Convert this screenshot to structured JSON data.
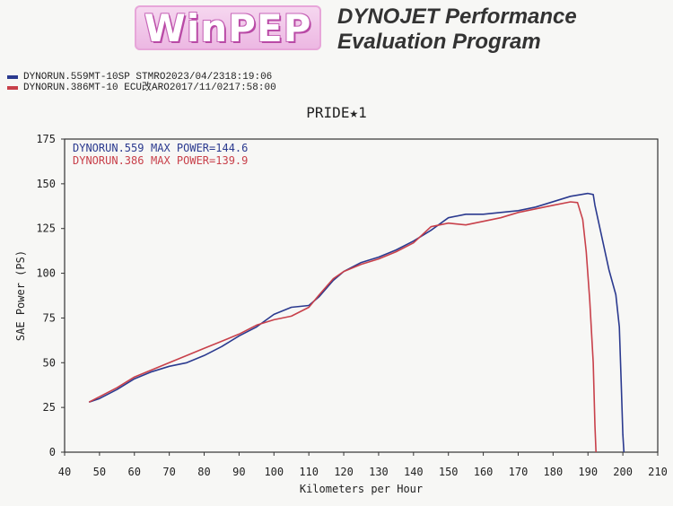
{
  "header": {
    "logo_text": "WinPEP",
    "brand_line1": "DYNOJET Performance",
    "brand_line2": "Evaluation Program"
  },
  "runs": [
    {
      "name": "DYNORUN.559",
      "model": "MT-10SP STM",
      "code": "RO",
      "date": "2023/04/23",
      "time": "18:19:06",
      "color": "#2b3a8f"
    },
    {
      "name": "DYNORUN.386",
      "model": "MT-10 ECU改",
      "code": "ARO",
      "date": "2017/11/02",
      "time": "17:58:00",
      "color": "#c8404a"
    }
  ],
  "chart_data": {
    "type": "line",
    "title": "PRIDE★1",
    "xlabel": "Kilometers per Hour",
    "ylabel": "SAE Power (PS)",
    "xlim": [
      40,
      210
    ],
    "ylim": [
      0,
      175
    ],
    "xticks": [
      40,
      50,
      60,
      70,
      80,
      90,
      100,
      110,
      120,
      130,
      140,
      150,
      160,
      170,
      180,
      190,
      200,
      210
    ],
    "yticks": [
      0,
      25,
      50,
      75,
      100,
      125,
      150,
      175
    ],
    "legend_position": "top-left",
    "series": [
      {
        "name": "DYNORUN.559",
        "label": "MAX POWER=144.6",
        "color": "#2b3a8f",
        "x": [
          47,
          50,
          55,
          60,
          65,
          70,
          75,
          80,
          85,
          90,
          95,
          100,
          105,
          110,
          113,
          117,
          120,
          125,
          130,
          135,
          140,
          145,
          150,
          155,
          160,
          165,
          170,
          175,
          180,
          185,
          190,
          191.5,
          192,
          194,
          196,
          198,
          199,
          199.5,
          200,
          200.3
        ],
        "y": [
          28,
          30,
          35,
          41,
          45,
          48,
          50,
          54,
          59,
          65,
          70,
          77,
          81,
          82,
          87,
          96,
          101,
          106,
          109,
          113,
          118,
          124,
          131,
          133,
          133,
          134,
          135,
          137,
          140,
          143,
          144.6,
          144,
          138,
          120,
          102,
          88,
          70,
          40,
          10,
          0
        ]
      },
      {
        "name": "DYNORUN.386",
        "label": "MAX POWER=139.9",
        "color": "#c8404a",
        "x": [
          47,
          50,
          55,
          60,
          65,
          70,
          75,
          80,
          85,
          90,
          95,
          100,
          105,
          110,
          113,
          117,
          120,
          125,
          130,
          135,
          140,
          145,
          150,
          155,
          160,
          165,
          170,
          175,
          180,
          185,
          187,
          188.5,
          189.5,
          190.5,
          191.5,
          192,
          192.3
        ],
        "y": [
          28,
          31,
          36,
          42,
          46,
          50,
          54,
          58,
          62,
          66,
          71,
          74,
          76,
          81,
          88,
          97,
          101,
          105,
          108,
          112,
          117,
          126,
          128,
          127,
          129,
          131,
          134,
          136,
          138,
          139.9,
          139.5,
          130,
          112,
          85,
          50,
          15,
          0
        ]
      }
    ]
  }
}
